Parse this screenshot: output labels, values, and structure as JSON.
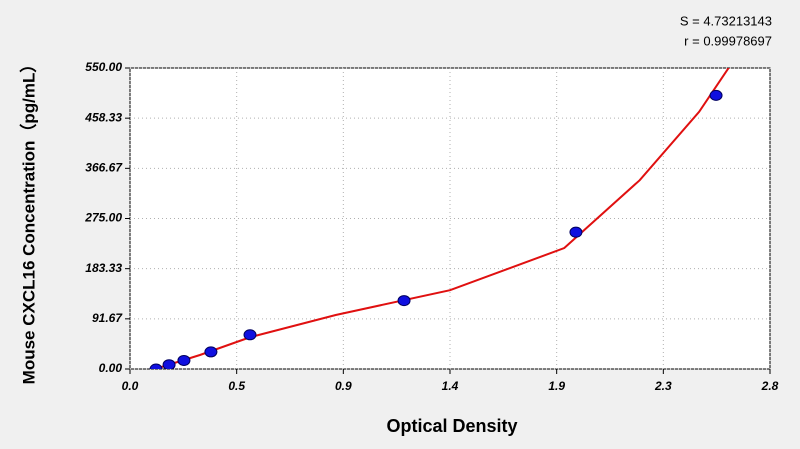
{
  "chart_data": {
    "type": "scatter",
    "annotations": [
      "S = 4.73213143",
      "r = 0.99978697"
    ],
    "x_label": "Optical Density",
    "y_label": "Mouse CXCL16 Concentration（pg/mL）",
    "xlim": [
      0,
      2.8
    ],
    "ylim": [
      0,
      550
    ],
    "xticks": [
      {
        "value": 0,
        "label": "0.0"
      },
      {
        "value": 0.4667,
        "label": "0.5"
      },
      {
        "value": 0.9333,
        "label": "0.9"
      },
      {
        "value": 1.4,
        "label": "1.4"
      },
      {
        "value": 1.8667,
        "label": "1.9"
      },
      {
        "value": 2.3333,
        "label": "2.3"
      },
      2.8
    ],
    "yticks": [
      {
        "value": 0,
        "label": "0.00"
      },
      91.67,
      183.33,
      {
        "value": 275,
        "label": "275.00"
      },
      366.67,
      458.33,
      {
        "value": 550,
        "label": "550.00"
      }
    ],
    "grid": true,
    "points": {
      "color": "#1010e0",
      "x": [
        0.114,
        0.171,
        0.236,
        0.354,
        0.525,
        1.199,
        1.951,
        2.564
      ],
      "y": [
        0,
        7.81,
        15.63,
        31.25,
        62.5,
        125,
        250,
        500
      ]
    },
    "curve": {
      "color": "#e01010",
      "x": [
        0.11,
        0.306,
        0.525,
        0.9,
        1.4,
        1.9,
        2.23,
        2.49,
        2.63
      ],
      "y": [
        0,
        25.6,
        58,
        98.7,
        144,
        221,
        345,
        470,
        557
      ]
    }
  }
}
